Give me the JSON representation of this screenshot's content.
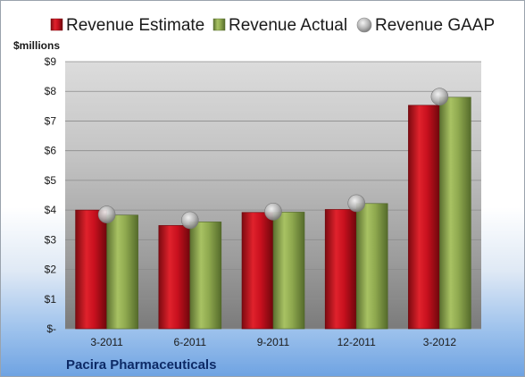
{
  "chart_data": {
    "type": "bar",
    "unit_label": "$millions",
    "company": "Pacira Pharmaceuticals",
    "categories": [
      "3-2011",
      "6-2011",
      "9-2011",
      "12-2011",
      "3-2012"
    ],
    "series": [
      {
        "name": "Revenue Estimate",
        "kind": "bar",
        "color": "#c8101e",
        "values": [
          4.0,
          3.48,
          3.92,
          4.02,
          7.53
        ]
      },
      {
        "name": "Revenue Actual",
        "kind": "bar",
        "color": "#8fa94f",
        "values": [
          3.83,
          3.6,
          3.93,
          4.22,
          7.8
        ]
      },
      {
        "name": "Revenue GAAP",
        "kind": "marker",
        "color": "#a9a9a9",
        "values": [
          3.85,
          3.66,
          3.95,
          4.23,
          7.82
        ]
      }
    ],
    "y_ticks": [
      "$-",
      "$1",
      "$2",
      "$3",
      "$4",
      "$5",
      "$6",
      "$7",
      "$8",
      "$9"
    ],
    "ylim": [
      0,
      9
    ],
    "grid": true,
    "legend_position": "top"
  }
}
